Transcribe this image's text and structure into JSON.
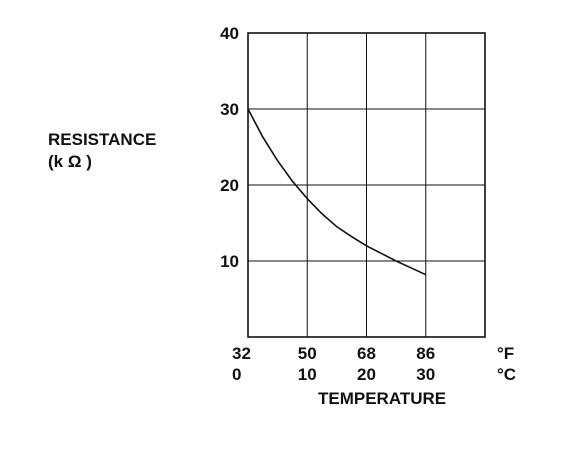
{
  "chart_data": {
    "type": "line",
    "ylabel_line1": "RESISTANCE",
    "ylabel_line2": "(k Ω )",
    "xlabel": "TEMPERATURE",
    "yticks": [
      10,
      20,
      30,
      40
    ],
    "ylim": [
      0,
      40
    ],
    "xlim_c": [
      0,
      30
    ],
    "x_ticks_f": [
      "32",
      "50",
      "68",
      "86"
    ],
    "x_ticks_c": [
      "0",
      "10",
      "20",
      "30"
    ],
    "x_unit_f": "°F",
    "x_unit_c": "°C",
    "grid": true,
    "series": [
      {
        "x_c": [
          0,
          2.5,
          5,
          7.5,
          10,
          12.5,
          15,
          17.5,
          20,
          22.5,
          25,
          27.5,
          30
        ],
        "values": [
          30,
          26.3,
          23.2,
          20.5,
          18.2,
          16.2,
          14.5,
          13.2,
          12.0,
          11.0,
          10.0,
          9.1,
          8.2
        ]
      }
    ]
  }
}
